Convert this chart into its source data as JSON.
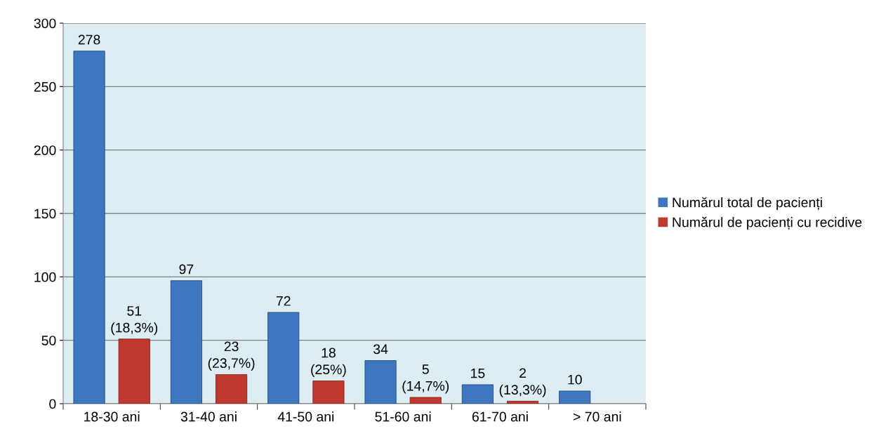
{
  "chart_data": {
    "type": "bar",
    "categories": [
      "18-30 ani",
      "31-40 ani",
      "41-50 ani",
      "51-60 ani",
      "61-70 ani",
      "> 70 ani"
    ],
    "series": [
      {
        "name": "Numărul total de pacienți",
        "color": "#3f76c0",
        "values": [
          278,
          97,
          72,
          34,
          15,
          10
        ],
        "value_labels": [
          "278",
          "97",
          "72",
          "34",
          "15",
          "10"
        ]
      },
      {
        "name": "Numărul de pacienți cu recidive",
        "color": "#c0392f",
        "values": [
          51,
          23,
          18,
          5,
          2,
          null
        ],
        "value_labels": [
          "51\n(18,3%)",
          "23\n(23,7%)",
          "18\n(25%)",
          "5\n(14,7%)",
          "2\n(13,3%)",
          null
        ]
      }
    ],
    "ylim": [
      0,
      300
    ],
    "yticks": [
      0,
      50,
      100,
      150,
      200,
      250,
      300
    ],
    "grid": "y",
    "legend": "right"
  }
}
